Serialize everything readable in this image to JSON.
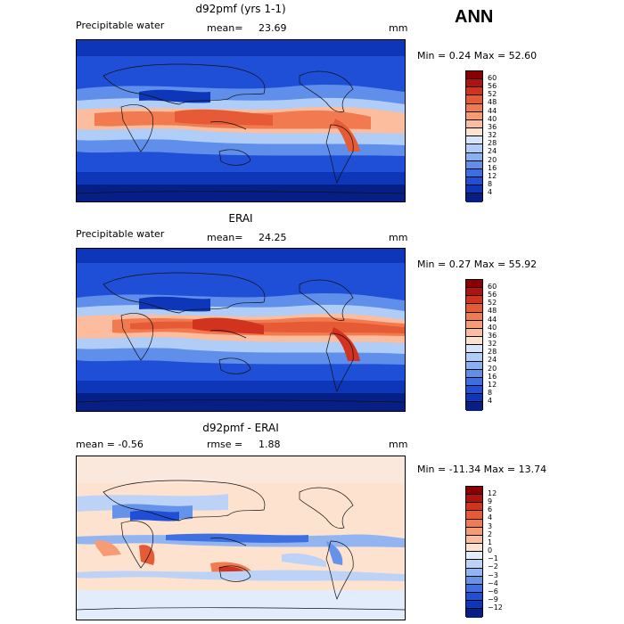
{
  "season": "ANN",
  "panels": [
    {
      "title": "d92pmf (yrs 1-1)",
      "left_label": "Precipitable water",
      "stat_label": "mean=",
      "stat_value": "23.69",
      "units": "mm",
      "min_max": "Min =   0.24 Max =  52.60",
      "colorbar_labels": [
        "60",
        "56",
        "52",
        "48",
        "44",
        "40",
        "36",
        "32",
        "28",
        "24",
        "20",
        "16",
        "12",
        "8",
        "4"
      ],
      "colorbar_colors": [
        "#8a0000",
        "#b0120f",
        "#d1331f",
        "#e65a35",
        "#f27a50",
        "#f79b75",
        "#fbbd9d",
        "#fde3cf",
        "#d6e5fb",
        "#b0cdf7",
        "#89b0f1",
        "#5f8fea",
        "#3b6ee2",
        "#1e4fd6",
        "#0d36b8",
        "#051f86"
      ]
    },
    {
      "title": "ERAI",
      "left_label": "Precipitable water",
      "stat_label": "mean=",
      "stat_value": "24.25",
      "units": "mm",
      "min_max": "Min =   0.27 Max =  55.92",
      "colorbar_labels": [
        "60",
        "56",
        "52",
        "48",
        "44",
        "40",
        "36",
        "32",
        "28",
        "24",
        "20",
        "16",
        "12",
        "8",
        "4"
      ],
      "colorbar_colors": [
        "#8a0000",
        "#b0120f",
        "#d1331f",
        "#e65a35",
        "#f27a50",
        "#f79b75",
        "#fbbd9d",
        "#fde3cf",
        "#d6e5fb",
        "#b0cdf7",
        "#89b0f1",
        "#5f8fea",
        "#3b6ee2",
        "#1e4fd6",
        "#0d36b8",
        "#051f86"
      ]
    },
    {
      "title": "d92pmf - ERAI",
      "left_label": "mean =   -0.56",
      "stat_label": "rmse =",
      "stat_value": "1.88",
      "units": "mm",
      "min_max": "Min = -11.34 Max =  13.74",
      "colorbar_labels": [
        "12",
        "9",
        "6",
        "4",
        "3",
        "2",
        "1",
        "0",
        "−1",
        "−2",
        "−3",
        "−4",
        "−6",
        "−9",
        "−12"
      ],
      "colorbar_colors": [
        "#8a0000",
        "#b0120f",
        "#d1331f",
        "#e65a35",
        "#f27a50",
        "#f79b75",
        "#fbbd9d",
        "#fde3cf",
        "#e2ecfb",
        "#bcd3f7",
        "#92b4f1",
        "#6693ea",
        "#3f70e2",
        "#1e4fd6",
        "#0d36b8",
        "#051f86"
      ]
    }
  ]
}
